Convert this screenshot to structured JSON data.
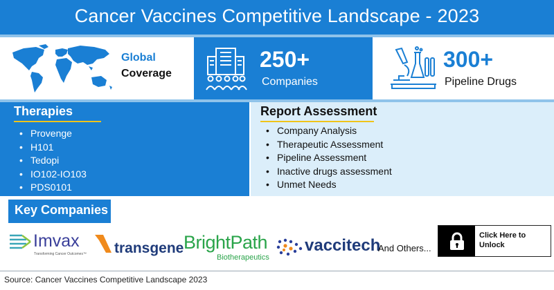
{
  "header": {
    "title": "Cancer Vaccines Competitive Landscape - 2023"
  },
  "stats": {
    "global": {
      "line1": "Global",
      "line2": "Coverage",
      "icon": "world-map-icon"
    },
    "companies": {
      "value": "250+",
      "label": "Companies",
      "icon": "building-people-icon"
    },
    "pipeline": {
      "value": "300+",
      "label": "Pipeline Drugs",
      "icon": "lab-microscope-icon"
    }
  },
  "therapies": {
    "title": "Therapies",
    "items": [
      "Provenge",
      "H101",
      "Tedopi",
      "IO102-IO103",
      "PDS0101"
    ]
  },
  "report": {
    "title": "Report Assessment",
    "items": [
      "Company Analysis",
      "Therapeutic Assessment",
      "Pipeline Assessment",
      "Inactive drugs assessment",
      "Unmet Needs"
    ]
  },
  "key_companies": {
    "title": "Key Companies",
    "logos": {
      "imvax": {
        "name": "Imvax",
        "tagline": "Transforming Cancer Outcomes™"
      },
      "transgene": {
        "name": "transgene"
      },
      "brightpath": {
        "name": "BrightPath",
        "sub": "Biotherapeutics"
      },
      "vaccitech": {
        "name": "vaccitech"
      }
    },
    "others": "And Others...",
    "unlock": {
      "line1": "Click Here to",
      "line2": "Unlock"
    }
  },
  "source": "Source: Cancer Vaccines Competitive Landscape 2023",
  "colors": {
    "primary": "#1a7fd4",
    "light": "#dbeefa",
    "accent_underline": "#f0c419"
  }
}
